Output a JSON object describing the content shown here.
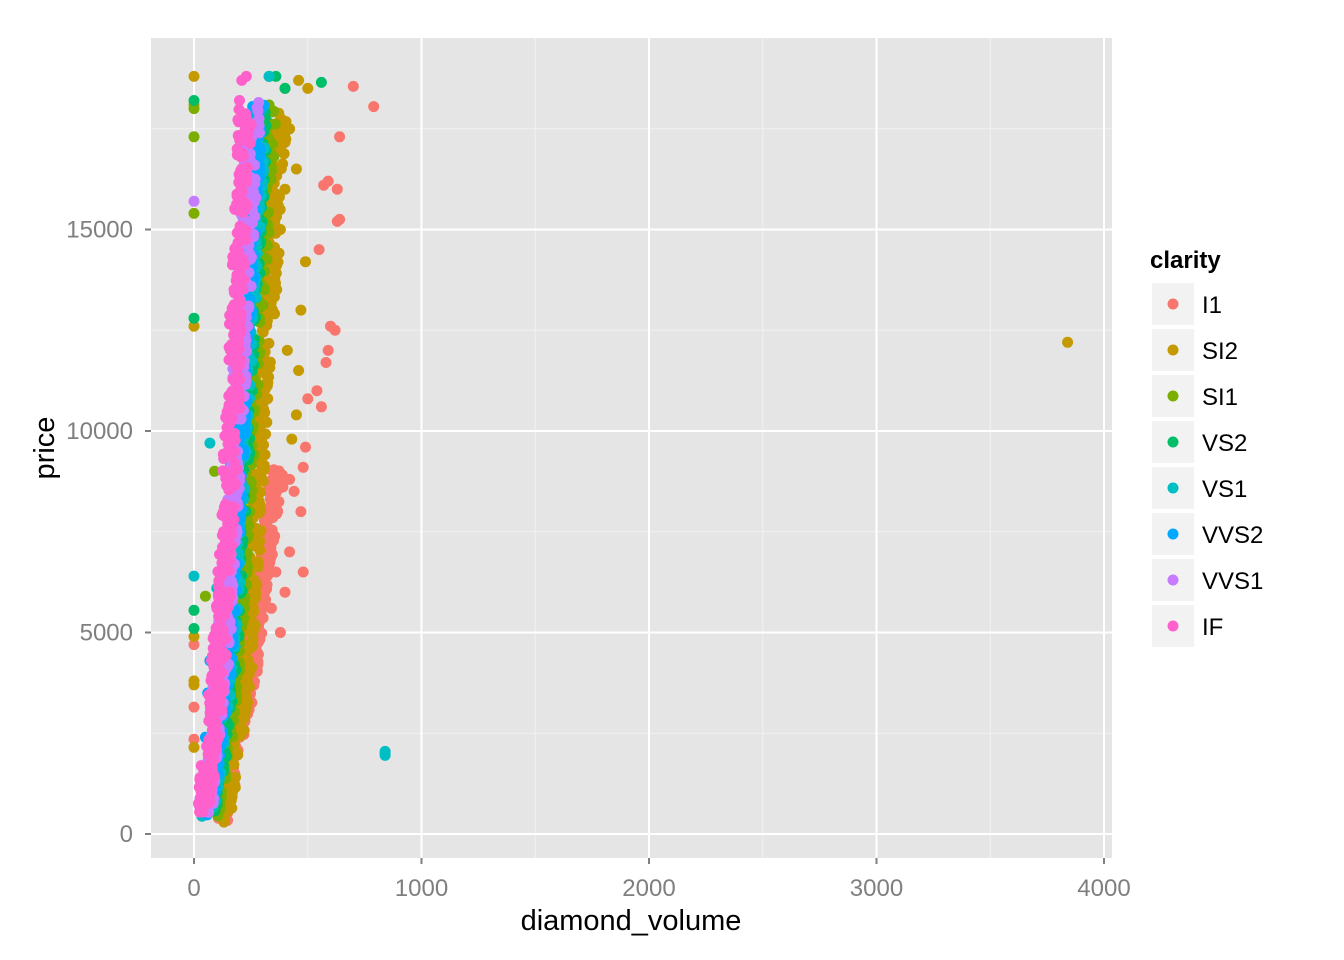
{
  "chart_data": {
    "type": "scatter",
    "title": "",
    "xlabel": "diamond_volume",
    "ylabel": "price",
    "xlim": [
      -190,
      4040
    ],
    "ylim": [
      -590,
      19750
    ],
    "x_ticks": [
      0,
      1000,
      2000,
      3000,
      4000
    ],
    "x_tick_labels": [
      "0",
      "1000",
      "2000",
      "3000",
      "4000"
    ],
    "y_ticks": [
      0,
      5000,
      10000,
      15000
    ],
    "y_tick_labels": [
      "0",
      "5000",
      "10000",
      "15000"
    ],
    "grid": true,
    "legend": {
      "title": "clarity",
      "placement": "right",
      "entries": [
        "I1",
        "SI2",
        "SI1",
        "VS2",
        "VS1",
        "VVS2",
        "VVS1",
        "IF"
      ]
    },
    "colors": {
      "panel": "#e5e5e5",
      "grid_major": "#ffffff",
      "grid_minor": "#f2f2f2",
      "I1": "#f8766d",
      "SI2": "#c49a00",
      "SI1": "#7cae00",
      "VS2": "#00be67",
      "VS1": "#00bfc4",
      "VVS2": "#00a9ff",
      "VVS1": "#c77cff",
      "IF": "#ff61cc"
    },
    "series": [
      {
        "name": "I1",
        "points": [
          [
            700,
            18550
          ],
          [
            790,
            18050
          ],
          [
            640,
            17300
          ],
          [
            630,
            16000
          ],
          [
            570,
            16100
          ],
          [
            590,
            16200
          ],
          [
            630,
            15200
          ],
          [
            640,
            15250
          ],
          [
            550,
            14500
          ],
          [
            600,
            12600
          ],
          [
            620,
            12500
          ],
          [
            590,
            12000
          ],
          [
            580,
            11700
          ],
          [
            540,
            11000
          ],
          [
            560,
            10600
          ],
          [
            500,
            10800
          ],
          [
            490,
            9600
          ],
          [
            480,
            9100
          ],
          [
            420,
            8800
          ],
          [
            440,
            8500
          ],
          [
            470,
            8000
          ],
          [
            480,
            6500
          ],
          [
            0,
            4700
          ],
          [
            0,
            3150
          ],
          [
            0,
            2350
          ],
          [
            420,
            7000
          ],
          [
            400,
            6000
          ],
          [
            380,
            5000
          ],
          [
            360,
            6500
          ],
          [
            340,
            5600
          ]
        ],
        "dense_band": [
          [
            120,
            500
          ],
          [
            140,
            1000
          ],
          [
            170,
            2000
          ],
          [
            210,
            3000
          ],
          [
            250,
            4000
          ],
          [
            270,
            5000
          ],
          [
            290,
            6000
          ],
          [
            320,
            7000
          ],
          [
            340,
            8000
          ],
          [
            370,
            9000
          ]
        ]
      },
      {
        "name": "SI2",
        "points": [
          [
            3840,
            12200
          ],
          [
            0,
            18800
          ],
          [
            0,
            18100
          ],
          [
            0,
            12600
          ],
          [
            0,
            4900
          ],
          [
            0,
            3800
          ],
          [
            0,
            3700
          ],
          [
            0,
            2150
          ],
          [
            130,
            450
          ],
          [
            460,
            18700
          ],
          [
            500,
            18500
          ],
          [
            490,
            14200
          ],
          [
            470,
            13000
          ],
          [
            460,
            11500
          ],
          [
            450,
            10400
          ],
          [
            430,
            9800
          ],
          [
            410,
            12000
          ],
          [
            400,
            16000
          ],
          [
            450,
            16500
          ],
          [
            420,
            17500
          ],
          [
            380,
            15000
          ]
        ],
        "dense_band": [
          [
            130,
            500
          ],
          [
            160,
            1500
          ],
          [
            200,
            3000
          ],
          [
            230,
            4500
          ],
          [
            250,
            6000
          ],
          [
            270,
            8000
          ],
          [
            290,
            10000
          ],
          [
            310,
            12000
          ],
          [
            340,
            14000
          ],
          [
            360,
            16000
          ],
          [
            380,
            18000
          ]
        ]
      },
      {
        "name": "SI1",
        "points": [
          [
            0,
            17300
          ],
          [
            0,
            15400
          ],
          [
            0,
            18000
          ],
          [
            90,
            9000
          ],
          [
            50,
            5900
          ],
          [
            330,
            18800
          ],
          [
            400,
            18500
          ],
          [
            350,
            16800
          ]
        ],
        "dense_band": [
          [
            80,
            600
          ],
          [
            110,
            1500
          ],
          [
            150,
            3000
          ],
          [
            180,
            4500
          ],
          [
            200,
            6000
          ],
          [
            220,
            8000
          ],
          [
            240,
            10000
          ],
          [
            260,
            12000
          ],
          [
            290,
            14000
          ],
          [
            310,
            16000
          ],
          [
            330,
            18000
          ]
        ]
      },
      {
        "name": "VS2",
        "points": [
          [
            0,
            18200
          ],
          [
            0,
            12800
          ],
          [
            0,
            5550
          ],
          [
            0,
            5100
          ],
          [
            560,
            18650
          ],
          [
            360,
            18800
          ],
          [
            400,
            18500
          ]
        ],
        "dense_band": [
          [
            70,
            600
          ],
          [
            100,
            1500
          ],
          [
            130,
            3000
          ],
          [
            160,
            4500
          ],
          [
            180,
            6000
          ],
          [
            200,
            8000
          ],
          [
            220,
            10000
          ],
          [
            240,
            12000
          ],
          [
            260,
            14000
          ],
          [
            280,
            16000
          ],
          [
            300,
            18000
          ]
        ]
      },
      {
        "name": "VS1",
        "points": [
          [
            840,
            2050
          ],
          [
            840,
            2000
          ],
          [
            840,
            1950
          ],
          [
            0,
            6400
          ],
          [
            70,
            9700
          ],
          [
            100,
            6100
          ],
          [
            330,
            18800
          ]
        ],
        "dense_band": [
          [
            60,
            600
          ],
          [
            90,
            1500
          ],
          [
            120,
            3000
          ],
          [
            150,
            4500
          ],
          [
            170,
            6000
          ],
          [
            190,
            8000
          ],
          [
            210,
            10000
          ],
          [
            230,
            12000
          ],
          [
            250,
            14000
          ],
          [
            270,
            16000
          ],
          [
            290,
            18000
          ]
        ]
      },
      {
        "name": "VVS2",
        "points": [
          [
            50,
            2400
          ],
          [
            70,
            4300
          ],
          [
            60,
            3500
          ],
          [
            160,
            9000
          ],
          [
            200,
            11500
          ],
          [
            240,
            15000
          ],
          [
            280,
            17500
          ]
        ],
        "dense_band": [
          [
            50,
            600
          ],
          [
            80,
            1500
          ],
          [
            110,
            3000
          ],
          [
            140,
            4500
          ],
          [
            160,
            6000
          ],
          [
            180,
            8000
          ],
          [
            200,
            10000
          ],
          [
            220,
            12000
          ],
          [
            240,
            14000
          ],
          [
            260,
            16000
          ],
          [
            280,
            18000
          ]
        ]
      },
      {
        "name": "VVS1",
        "points": [
          [
            0,
            15700
          ],
          [
            60,
            1800
          ],
          [
            80,
            3000
          ],
          [
            120,
            5500
          ],
          [
            150,
            8000
          ],
          [
            180,
            11000
          ],
          [
            210,
            14000
          ]
        ],
        "dense_band": [
          [
            45,
            600
          ],
          [
            70,
            1500
          ],
          [
            100,
            3000
          ],
          [
            125,
            4500
          ],
          [
            145,
            6000
          ],
          [
            165,
            8000
          ],
          [
            185,
            10000
          ],
          [
            205,
            12000
          ],
          [
            225,
            14000
          ],
          [
            245,
            16000
          ],
          [
            265,
            18000
          ]
        ]
      },
      {
        "name": "IF",
        "points": [
          [
            100,
            5600
          ],
          [
            120,
            6400
          ],
          [
            130,
            7500
          ],
          [
            150,
            9500
          ],
          [
            160,
            12000
          ],
          [
            170,
            13000
          ],
          [
            180,
            15500
          ],
          [
            190,
            17000
          ],
          [
            200,
            18200
          ],
          [
            210,
            18700
          ],
          [
            230,
            18800
          ]
        ],
        "dense_band": [
          [
            40,
            600
          ],
          [
            60,
            1500
          ],
          [
            90,
            3000
          ],
          [
            110,
            4500
          ],
          [
            130,
            6000
          ],
          [
            150,
            8000
          ],
          [
            165,
            10000
          ],
          [
            180,
            12000
          ],
          [
            195,
            14000
          ],
          [
            210,
            16000
          ],
          [
            225,
            18000
          ]
        ]
      }
    ]
  }
}
